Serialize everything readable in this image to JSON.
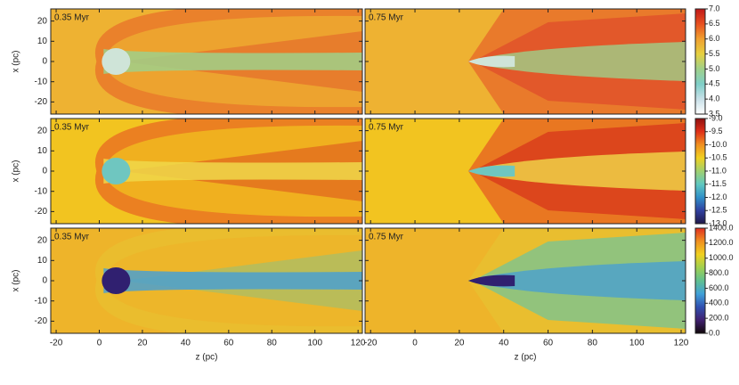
{
  "panels": [
    {
      "time": "0.35 Myr"
    },
    {
      "time": "0.75 Myr"
    },
    {
      "time": "0.35 Myr"
    },
    {
      "time": "0.75 Myr"
    },
    {
      "time": "0.35 Myr"
    },
    {
      "time": "0.75 Myr"
    }
  ],
  "x_axis": {
    "label": "z (pc)",
    "lim": [
      -22.5,
      122
    ],
    "ticks": [
      -20,
      0,
      20,
      40,
      60,
      80,
      100,
      120
    ]
  },
  "y_axis": {
    "label": "x (pc)",
    "lim": [
      -26,
      26
    ],
    "ticks": [
      -20,
      -10,
      0,
      10,
      20
    ]
  },
  "colorbars": [
    {
      "lim": [
        3.5,
        7
      ],
      "colors": [
        "#ffffff",
        "#c8e0e8",
        "#7fcfc8",
        "#9fd08a",
        "#e6d040",
        "#f0a030",
        "#e85020",
        "#c01818"
      ],
      "ticks": [
        {
          "value": 7,
          "label": "7.0"
        },
        6.5,
        {
          "value": 6,
          "label": "6.0"
        },
        5.5,
        {
          "value": 5,
          "label": "5.0"
        },
        4.5,
        {
          "value": 4,
          "label": "4.0"
        },
        3.5
      ]
    },
    {
      "lim": [
        -13,
        -9
      ],
      "colors": [
        "#201848",
        "#3040a0",
        "#3090c8",
        "#60c8c0",
        "#a0d070",
        "#f0d020",
        "#f09020",
        "#e03018",
        "#901010"
      ],
      "ticks": [
        {
          "value": -9,
          "label": "-9.0"
        },
        -9.5,
        {
          "value": -10,
          "label": "-10.0"
        },
        -10.5,
        {
          "value": -11,
          "label": "-11.0"
        },
        -11.5,
        {
          "value": -12,
          "label": "-12.0"
        },
        -12.5,
        {
          "value": -13,
          "label": "-13.0"
        }
      ]
    },
    {
      "lim": [
        0,
        1400
      ],
      "colors": [
        "#100808",
        "#402070",
        "#3050b0",
        "#40a0d8",
        "#60c090",
        "#a0d050",
        "#f0d020",
        "#f09020",
        "#e03020"
      ],
      "ticks": [
        {
          "value": 1400,
          "label": "1400.0"
        },
        {
          "value": 1200,
          "label": "1200.0"
        },
        {
          "value": 1000,
          "label": "1000.0"
        },
        {
          "value": 800,
          "label": "800.0"
        },
        {
          "value": 600,
          "label": "600.0"
        },
        {
          "value": 400,
          "label": "400.0"
        },
        {
          "value": 200,
          "label": "200.0"
        },
        {
          "value": 0,
          "label": "0.0"
        }
      ]
    }
  ]
}
